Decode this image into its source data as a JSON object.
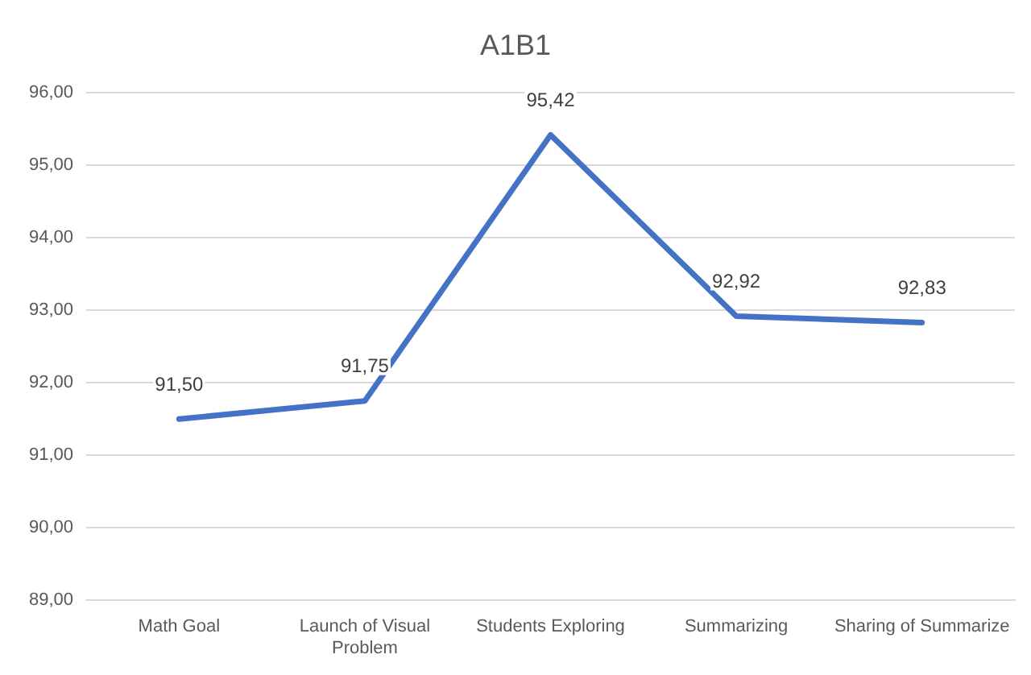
{
  "chart_data": {
    "type": "line",
    "title": "A1B1",
    "categories": [
      "Math Goal",
      "Launch of Visual Problem",
      "Students Exploring",
      "Summarizing",
      "Sharing of Summarize"
    ],
    "series": [
      {
        "color": "#4472c4",
        "values": [
          91.5,
          91.75,
          95.42,
          92.92,
          92.83
        ],
        "value_labels": [
          "91,50",
          "91,75",
          "95,42",
          "92,92",
          "92,83"
        ]
      }
    ],
    "ylim": [
      89,
      96
    ],
    "yticks": [
      {
        "value": 89,
        "label": "89,00"
      },
      {
        "value": 90,
        "label": "90,00"
      },
      {
        "value": 91,
        "label": "91,00"
      },
      {
        "value": 92,
        "label": "92,00"
      },
      {
        "value": 93,
        "label": "93,00"
      },
      {
        "value": 94,
        "label": "94,00"
      },
      {
        "value": 95,
        "label": "95,00"
      },
      {
        "value": 96,
        "label": "96,00"
      }
    ],
    "grid": "y",
    "legend": false,
    "marker": "none",
    "line_style": "solid"
  }
}
